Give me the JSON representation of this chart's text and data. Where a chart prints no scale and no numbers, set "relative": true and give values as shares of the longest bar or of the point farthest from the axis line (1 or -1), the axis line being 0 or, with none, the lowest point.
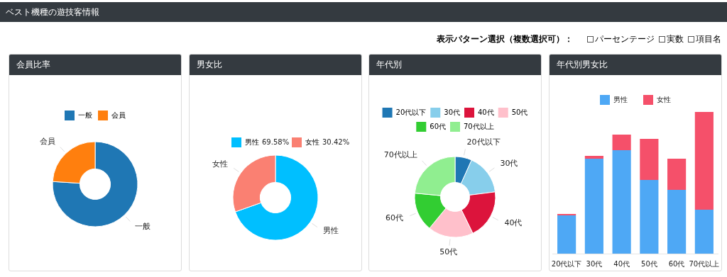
{
  "chart_data": [
    {
      "type": "other",
      "title": "ベスト機種の遊技客情報",
      "annotations": [
        "表示パターン選択（複数選択可）：",
        "パーセンテージ",
        "実数",
        "項目名"
      ]
    },
    {
      "type": "donut",
      "title": "会員比率",
      "categories": [
        "一般",
        "会員"
      ],
      "values": [
        76,
        24
      ],
      "colors": [
        "#1f77b4",
        "#ff7f0e"
      ],
      "legend": "top"
    },
    {
      "type": "donut",
      "title": "男女比",
      "categories": [
        "男性",
        "女性"
      ],
      "values": [
        69.58,
        30.42
      ],
      "colors": [
        "#00bfff",
        "#fa8072"
      ],
      "value_labels": [
        "69.58%",
        "30.42%"
      ],
      "legend": "top"
    },
    {
      "type": "donut",
      "title": "年代別",
      "categories": [
        "20代以下",
        "30代",
        "40代",
        "50代",
        "60代",
        "70代以上"
      ],
      "values": [
        6.7,
        16.3,
        19.8,
        18.1,
        15.6,
        23.5
      ],
      "colors": [
        "#1f77b4",
        "#87ceeb",
        "#dc143c",
        "#ffc0cb",
        "#32cd32",
        "#90ee90"
      ],
      "legend": "top"
    },
    {
      "type": "bar",
      "title": "年代別男女比",
      "categories": [
        "20代以下",
        "30代",
        "40代",
        "50代",
        "60代",
        "70代以上"
      ],
      "stacked": true,
      "relative": true,
      "legend": "top",
      "series": [
        {
          "name": "男性",
          "color": "#4ea8f5",
          "values": [
            0.27,
            0.67,
            0.73,
            0.52,
            0.45,
            0.31
          ]
        },
        {
          "name": "女性",
          "color": "#f5506a",
          "values": [
            0.01,
            0.02,
            0.11,
            0.29,
            0.22,
            0.69
          ]
        }
      ]
    }
  ]
}
